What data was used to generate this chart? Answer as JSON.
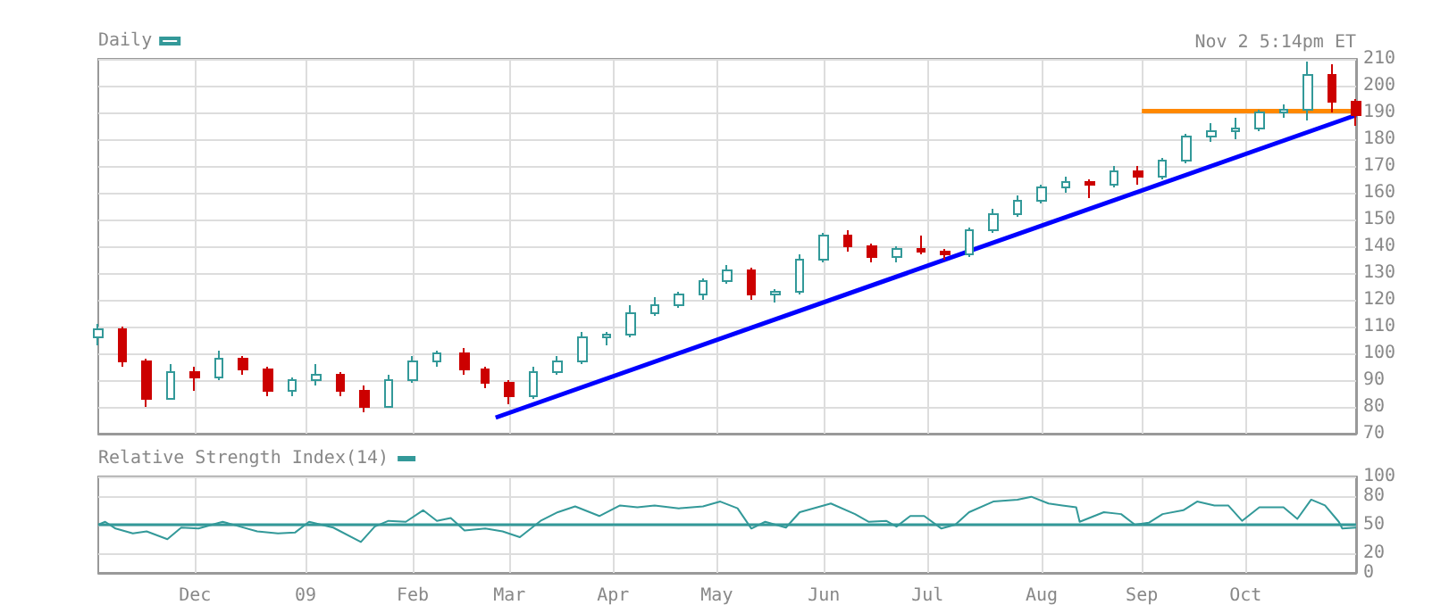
{
  "chart_data": [
    {
      "type": "candlestick",
      "annotations": [
        "Nov 2 5:14pm ET"
      ],
      "legend": "top left",
      "grid": true,
      "tick_labels": "y",
      "marker": "none",
      "xlim": [
        "2008-11-03",
        "2009-11-02"
      ],
      "xticks": [
        {
          "value": "2008-12-01",
          "label": null
        },
        {
          "value": "2009-01-02",
          "label": null
        },
        {
          "value": "2009-02-02",
          "label": null
        },
        {
          "value": "2009-03-02",
          "label": null
        },
        {
          "value": "2009-04-01",
          "label": null
        },
        {
          "value": "2009-05-01",
          "label": null
        },
        {
          "value": "2009-06-01",
          "label": null
        },
        {
          "value": "2009-07-01",
          "label": null
        },
        {
          "value": "2009-08-03",
          "label": null
        },
        {
          "value": "2009-09-01",
          "label": null
        },
        {
          "value": "2009-10-01",
          "label": null
        }
      ],
      "ylim": [
        70,
        210
      ],
      "yticks": [
        70,
        80,
        90,
        100,
        110,
        120,
        130,
        140,
        150,
        160,
        170,
        180,
        190,
        200,
        210
      ],
      "series": [
        {
          "name": "Daily",
          "color": "#339999",
          "x": [
            "2008-11-03",
            "2008-11-24",
            "2008-12-08",
            "2008-12-29",
            "2009-01-05",
            "2009-01-26",
            "2009-02-02",
            "2009-02-09",
            "2009-03-09",
            "2009-03-16",
            "2009-03-23",
            "2009-03-30",
            "2009-04-06",
            "2009-04-13",
            "2009-04-20",
            "2009-04-27",
            "2009-05-04",
            "2009-05-18",
            "2009-05-25",
            "2009-06-01",
            "2009-06-22",
            "2009-07-13",
            "2009-07-20",
            "2009-07-27",
            "2009-08-03",
            "2009-08-10",
            "2009-08-24",
            "2009-09-07",
            "2009-09-14",
            "2009-09-21",
            "2009-09-28",
            "2009-10-05",
            "2009-10-12",
            "2009-10-19"
          ],
          "ohlc": [
            [
              106,
              111,
              103,
              109
            ],
            [
              83,
              96,
              83,
              93
            ],
            [
              91,
              101,
              90,
              98
            ],
            [
              86,
              91,
              84,
              90
            ],
            [
              90,
              96,
              88,
              92
            ],
            [
              80,
              92,
              80,
              90
            ],
            [
              90,
              99,
              89,
              97
            ],
            [
              97,
              101,
              95,
              100
            ],
            [
              84,
              95,
              83,
              93
            ],
            [
              93,
              99,
              92,
              97
            ],
            [
              97,
              108,
              96,
              106
            ],
            [
              106,
              108,
              103,
              107
            ],
            [
              107,
              118,
              106,
              115
            ],
            [
              115,
              121,
              114,
              118
            ],
            [
              118,
              123,
              117,
              122
            ],
            [
              122,
              128,
              120,
              127
            ],
            [
              127,
              133,
              126,
              131
            ],
            [
              122,
              124,
              119,
              123
            ],
            [
              123,
              137,
              122,
              135
            ],
            [
              135,
              145,
              134,
              144
            ],
            [
              136,
              140,
              134,
              139
            ],
            [
              137,
              147,
              136,
              146
            ],
            [
              146,
              154,
              145,
              152
            ],
            [
              152,
              159,
              151,
              157
            ],
            [
              157,
              163,
              156,
              162
            ],
            [
              162,
              166,
              160,
              164
            ],
            [
              163,
              170,
              162,
              168
            ],
            [
              166,
              173,
              165,
              172
            ],
            [
              172,
              182,
              171,
              181
            ],
            [
              181,
              186,
              179,
              183
            ],
            [
              183,
              188,
              180,
              184
            ],
            [
              184,
              191,
              183,
              190
            ],
            [
              190,
              193,
              188,
              191
            ],
            [
              191,
              209,
              187,
              204
            ]
          ]
        },
        {
          "color": "#cc0000",
          "x": [
            "2008-11-10",
            "2008-11-17",
            "2008-12-01",
            "2008-12-15",
            "2008-12-22",
            "2009-01-12",
            "2009-01-19",
            "2009-02-17",
            "2009-02-23",
            "2009-03-02",
            "2009-05-11",
            "2009-06-08",
            "2009-06-15",
            "2009-06-29",
            "2009-07-06",
            "2009-08-17",
            "2009-08-31",
            "2009-10-26",
            "2009-11-02"
          ],
          "ohlc": [
            [
              109,
              110,
              95,
              97
            ],
            [
              97,
              98,
              80,
              83
            ],
            [
              93,
              95,
              86,
              91
            ],
            [
              98,
              99,
              92,
              94
            ],
            [
              94,
              95,
              84,
              86
            ],
            [
              92,
              93,
              84,
              86
            ],
            [
              86,
              88,
              78,
              80
            ],
            [
              100,
              102,
              92,
              94
            ],
            [
              94,
              95,
              87,
              89
            ],
            [
              89,
              90,
              81,
              84
            ],
            [
              131,
              132,
              120,
              122
            ],
            [
              144,
              146,
              138,
              140
            ],
            [
              140,
              141,
              134,
              136
            ],
            [
              139,
              144,
              137,
              138
            ],
            [
              138,
              139,
              135,
              137
            ],
            [
              164,
              165,
              158,
              163
            ],
            [
              168,
              170,
              163,
              166
            ],
            [
              204,
              208,
              190,
              194
            ],
            [
              194,
              195,
              185,
              189
            ]
          ]
        },
        {
          "type": "line",
          "color": "#0000ff",
          "x": [
            "2009-02-26",
            "2009-11-02"
          ],
          "values": [
            76,
            189
          ]
        },
        {
          "type": "line",
          "color": "#ff8800",
          "x": [
            "2009-09-01",
            "2009-11-02"
          ],
          "values": [
            190.5,
            190.5
          ]
        }
      ]
    },
    {
      "type": "line",
      "legend": "top left",
      "grid": true,
      "marker": "none",
      "xlim": [
        "2008-11-03",
        "2009-11-02"
      ],
      "xticks": [
        {
          "value": "2008-12-01",
          "label": "Dec"
        },
        {
          "value": "2009-01-02",
          "label": "09"
        },
        {
          "value": "2009-02-02",
          "label": "Feb"
        },
        {
          "value": "2009-03-02",
          "label": "Mar"
        },
        {
          "value": "2009-04-01",
          "label": "Apr"
        },
        {
          "value": "2009-05-01",
          "label": "May"
        },
        {
          "value": "2009-06-01",
          "label": "Jun"
        },
        {
          "value": "2009-07-01",
          "label": "Jul"
        },
        {
          "value": "2009-08-03",
          "label": "Aug"
        },
        {
          "value": "2009-09-01",
          "label": "Sep"
        },
        {
          "value": "2009-10-01",
          "label": "Oct"
        }
      ],
      "ylim": [
        0,
        100
      ],
      "yticks": [
        0,
        20,
        50,
        80,
        100
      ],
      "ref_lines": [
        {
          "axis": "y",
          "value": 50,
          "color": "#339999"
        }
      ],
      "series": [
        {
          "name": "Relative Strength Index(14)",
          "color": "#339999",
          "x": [
            "2008-11-03",
            "2008-11-05",
            "2008-11-08",
            "2008-11-13",
            "2008-11-17",
            "2008-11-23",
            "2008-11-27",
            "2008-12-02",
            "2008-12-09",
            "2008-12-14",
            "2008-12-19",
            "2008-12-25",
            "2008-12-30",
            "2009-01-03",
            "2009-01-10",
            "2009-01-18",
            "2009-01-22",
            "2009-01-26",
            "2009-01-31",
            "2009-02-05",
            "2009-02-09",
            "2009-02-13",
            "2009-02-17",
            "2009-02-23",
            "2009-02-28",
            "2009-03-05",
            "2009-03-11",
            "2009-03-16",
            "2009-03-21",
            "2009-03-28",
            "2009-04-03",
            "2009-04-08",
            "2009-04-13",
            "2009-04-20",
            "2009-04-27",
            "2009-05-02",
            "2009-05-07",
            "2009-05-11",
            "2009-05-15",
            "2009-05-21",
            "2009-05-25",
            "2009-06-03",
            "2009-06-10",
            "2009-06-14",
            "2009-06-19",
            "2009-06-22",
            "2009-06-26",
            "2009-06-30",
            "2009-07-05",
            "2009-07-09",
            "2009-07-13",
            "2009-07-20",
            "2009-07-27",
            "2009-07-31",
            "2009-08-05",
            "2009-08-09",
            "2009-08-13",
            "2009-08-14",
            "2009-08-21",
            "2009-08-26",
            "2009-08-30",
            "2009-09-03",
            "2009-09-07",
            "2009-09-13",
            "2009-09-17",
            "2009-09-22",
            "2009-09-26",
            "2009-09-30",
            "2009-10-05",
            "2009-10-12",
            "2009-10-16",
            "2009-10-20",
            "2009-10-24",
            "2009-10-28",
            "2009-10-29",
            "2009-11-02"
          ],
          "values": [
            50,
            53,
            46,
            41,
            43,
            35,
            47,
            46,
            53,
            48,
            43,
            41,
            42,
            53,
            47,
            32,
            48,
            54,
            53,
            65,
            54,
            57,
            44,
            46,
            43,
            37,
            54,
            63,
            69,
            59,
            70,
            68,
            70,
            67,
            69,
            74,
            67,
            46,
            53,
            47,
            63,
            72,
            61,
            53,
            54,
            48,
            59,
            59,
            46,
            50,
            63,
            74,
            76,
            79,
            72,
            70,
            68,
            53,
            63,
            61,
            50,
            52,
            61,
            65,
            74,
            70,
            70,
            54,
            68,
            68,
            56,
            76,
            70,
            53,
            46,
            47
          ]
        }
      ]
    }
  ]
}
